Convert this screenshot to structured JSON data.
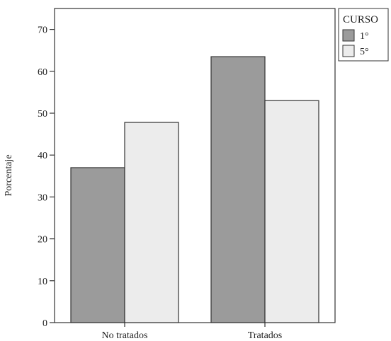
{
  "chart_data": {
    "type": "bar",
    "categories": [
      "No tratados",
      "Tratados"
    ],
    "series": [
      {
        "name": "1°",
        "values": [
          37,
          63.5
        ],
        "color": "#9b9b9b"
      },
      {
        "name": "5°",
        "values": [
          47.8,
          53
        ],
        "color": "#ececec"
      }
    ],
    "title": "",
    "xlabel": "",
    "ylabel": "Porcentaje",
    "ylim": [
      0,
      75
    ],
    "yticks": [
      0,
      10,
      20,
      30,
      40,
      50,
      60,
      70
    ],
    "grid": false,
    "legend": {
      "title": "CURSO",
      "position": "right-top"
    }
  }
}
